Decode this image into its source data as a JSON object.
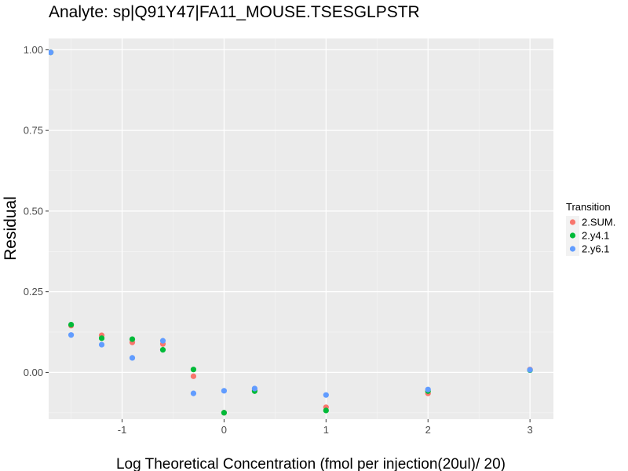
{
  "chart_data": {
    "type": "scatter",
    "title": "Analyte: sp|Q91Y47|FA11_MOUSE.TSESGLPSTR",
    "xlabel": "Log Theoretical Concentration (fmol per injection(20ul)/ 20)",
    "ylabel": "Residual",
    "xlim": [
      -1.72,
      3.23
    ],
    "ylim": [
      -0.145,
      1.035
    ],
    "x_ticks": [
      -1,
      0,
      1,
      2,
      3
    ],
    "x_tick_labels": [
      "-1",
      "0",
      "1",
      "2",
      "3"
    ],
    "y_ticks": [
      0.0,
      0.25,
      0.5,
      0.75,
      1.0
    ],
    "y_tick_labels": [
      "0.00",
      "0.25",
      "0.50",
      "0.75",
      "1.00"
    ],
    "grid": true,
    "background": "#ebebeb",
    "legend": {
      "title": "Transition",
      "position": "right"
    },
    "series": [
      {
        "name": "2.SUM.",
        "color": "#F8766D",
        "points": [
          [
            -1.7,
            0.992
          ],
          [
            -1.5,
            0.145
          ],
          [
            -1.2,
            0.115
          ],
          [
            -0.9,
            0.093
          ],
          [
            -0.6,
            0.088
          ],
          [
            -0.3,
            -0.012
          ],
          [
            0.0,
            -0.125
          ],
          [
            0.3,
            -0.055
          ],
          [
            1.0,
            -0.108
          ],
          [
            2.0,
            -0.065
          ],
          [
            3.0,
            0.009
          ]
        ]
      },
      {
        "name": "2.y4.1",
        "color": "#00BA38",
        "points": [
          [
            -1.7,
            0.992
          ],
          [
            -1.5,
            0.148
          ],
          [
            -1.2,
            0.106
          ],
          [
            -0.9,
            0.103
          ],
          [
            -0.6,
            0.07
          ],
          [
            -0.3,
            0.009
          ],
          [
            0.0,
            -0.125
          ],
          [
            0.3,
            -0.058
          ],
          [
            1.0,
            -0.118
          ],
          [
            2.0,
            -0.058
          ],
          [
            3.0,
            0.007
          ]
        ]
      },
      {
        "name": "2.y6.1",
        "color": "#619CFF",
        "points": [
          [
            -1.7,
            0.992
          ],
          [
            -1.5,
            0.116
          ],
          [
            -1.2,
            0.086
          ],
          [
            -0.9,
            0.045
          ],
          [
            -0.6,
            0.098
          ],
          [
            -0.3,
            -0.065
          ],
          [
            0.0,
            -0.057
          ],
          [
            0.3,
            -0.05
          ],
          [
            1.0,
            -0.07
          ],
          [
            2.0,
            -0.053
          ],
          [
            3.0,
            0.008
          ]
        ]
      }
    ]
  }
}
